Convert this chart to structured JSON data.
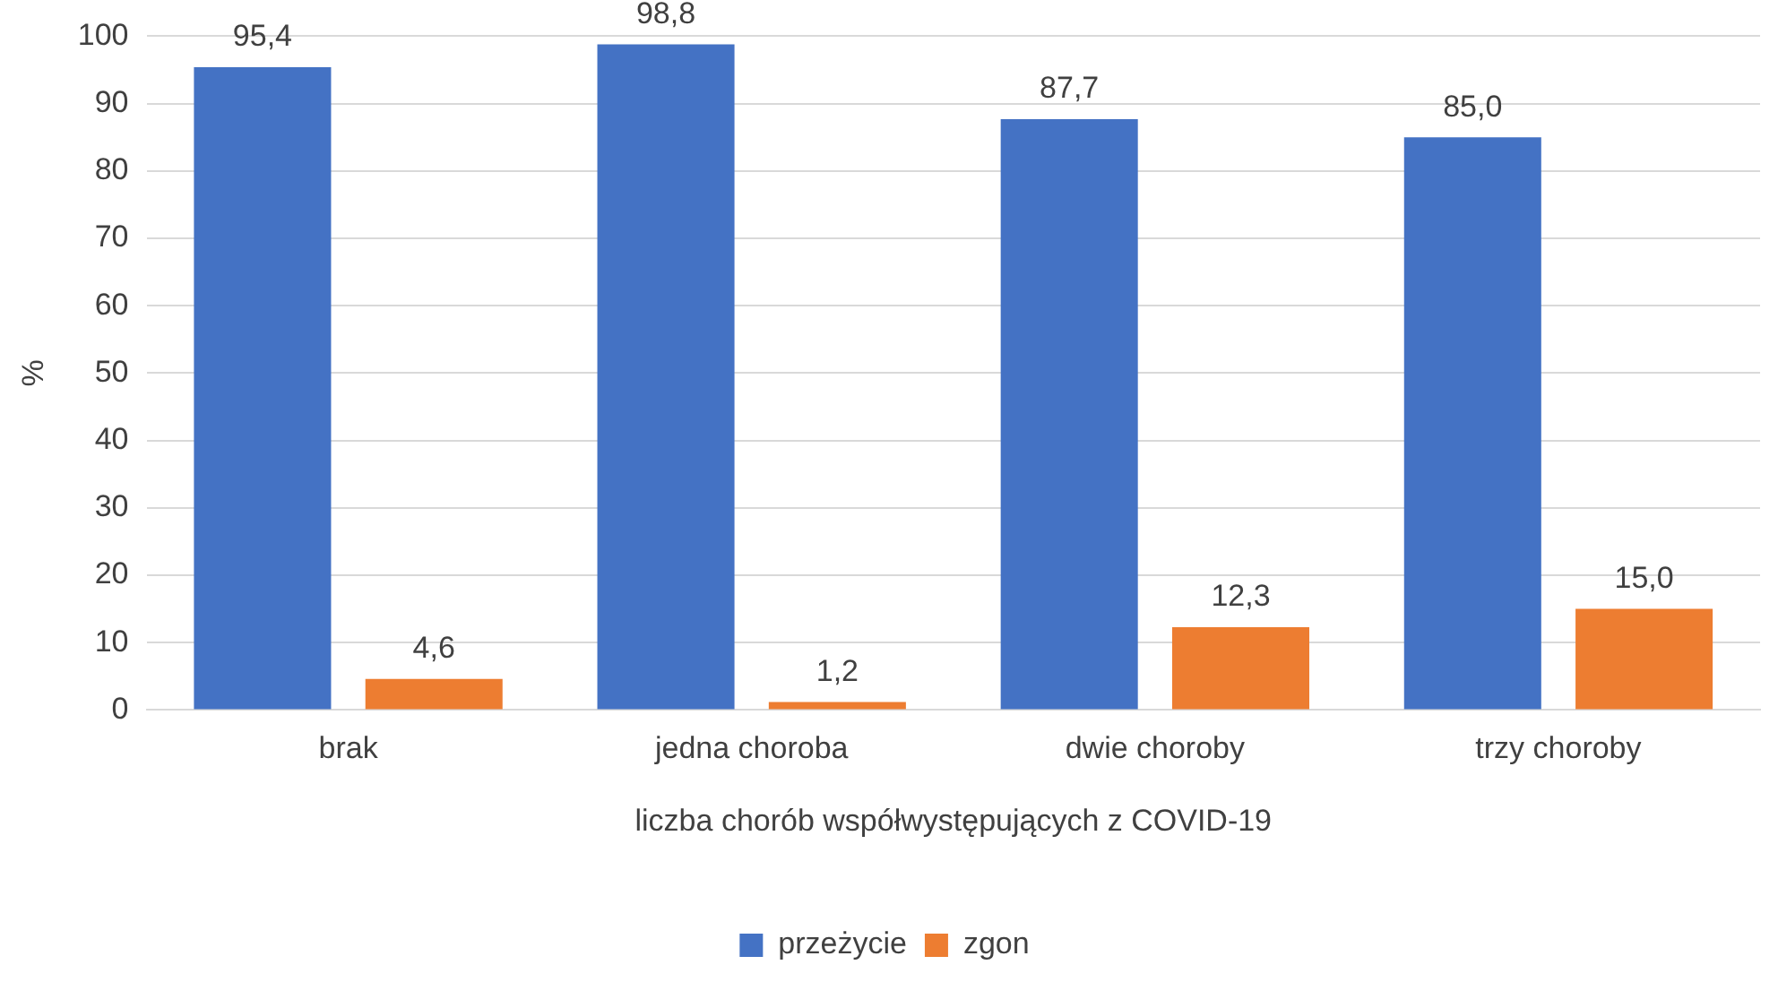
{
  "chart_data": {
    "type": "bar",
    "xlabel": "liczba chorób współwystępujących z COVID-19",
    "ylabel": "%",
    "categories": [
      "brak",
      "jedna choroba",
      "dwie choroby",
      "trzy choroby"
    ],
    "series": [
      {
        "name": "przeżycie",
        "color": "#4472c4",
        "values": [
          95.4,
          98.8,
          87.7,
          85.0
        ],
        "value_labels": [
          "95,4",
          "98,8",
          "87,7",
          "85,0"
        ]
      },
      {
        "name": "zgon",
        "color": "#ed7d31",
        "values": [
          4.6,
          1.2,
          12.3,
          15.0
        ],
        "value_labels": [
          "4,6",
          "1,2",
          "12,3",
          "15,0"
        ]
      }
    ],
    "ylim": [
      0,
      100
    ],
    "yticks": [
      0,
      10,
      20,
      30,
      40,
      50,
      60,
      70,
      80,
      90,
      100
    ],
    "grid": "y",
    "legend": "bottom"
  }
}
